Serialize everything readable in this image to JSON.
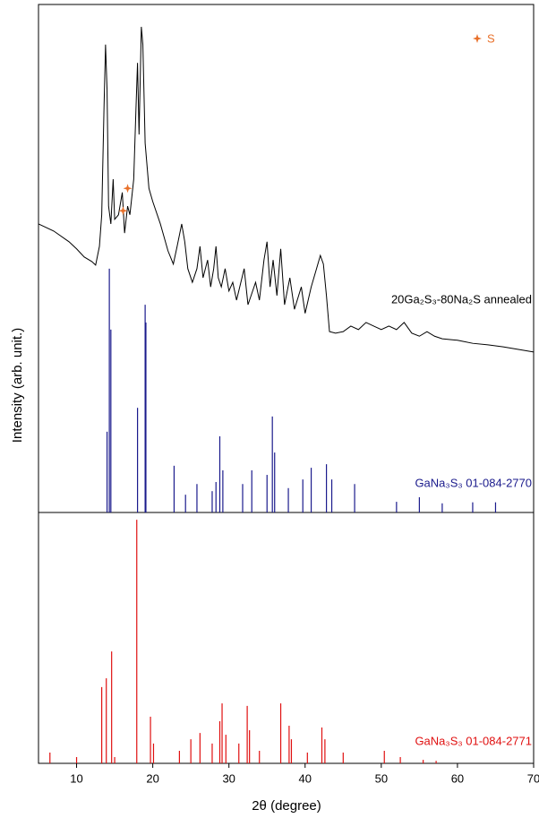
{
  "chart_data": [
    {
      "type": "combo",
      "ylabel": "Intensity (arb. unit.)",
      "xlim": [
        5,
        70
      ],
      "ylim": [
        0,
        100
      ],
      "legend": "upper right",
      "series": [
        {
          "name": "20Ga₂S₃-80Na₂S annealed",
          "type": "line",
          "color": "#000000",
          "x": [
            5,
            7,
            9,
            10,
            11,
            12,
            12.5,
            13,
            13.3,
            13.6,
            13.8,
            14,
            14.2,
            14.5,
            14.8,
            15,
            15.5,
            16,
            16.3,
            16.7,
            17,
            17.5,
            17.8,
            18,
            18.2,
            18.5,
            18.7,
            19,
            19.5,
            20,
            21,
            22,
            22.7,
            23.2,
            23.8,
            24.2,
            24.6,
            25.2,
            25.8,
            26.2,
            26.6,
            27.2,
            27.6,
            28,
            28.3,
            28.6,
            29,
            29.5,
            30,
            30.5,
            31,
            32,
            32.5,
            33.5,
            34,
            34.6,
            35,
            35.4,
            35.8,
            36.3,
            36.8,
            37.3,
            38,
            38.6,
            39.5,
            40,
            40.8,
            41.5,
            42,
            42.4,
            42.8,
            43.2,
            44,
            45,
            46,
            47,
            48,
            49,
            50,
            51,
            52,
            53,
            54,
            55,
            56,
            57,
            58,
            60,
            62,
            64,
            66,
            68,
            70
          ],
          "values": [
            56.8,
            55.4,
            53.3,
            51.9,
            50.3,
            49.4,
            48.7,
            52.4,
            58.6,
            79.7,
            92.1,
            83.2,
            60.3,
            56.8,
            65.6,
            57.7,
            58.6,
            63.0,
            55.0,
            60.3,
            58.6,
            65.6,
            79.7,
            88.5,
            74.4,
            95.6,
            92.1,
            72.7,
            63.8,
            61.2,
            56.8,
            51.5,
            48.9,
            52.4,
            56.8,
            53.3,
            48.0,
            45.3,
            48.0,
            52.4,
            46.2,
            49.7,
            44.4,
            48.0,
            52.4,
            46.2,
            44.4,
            48.0,
            43.6,
            45.3,
            41.8,
            48.0,
            40.9,
            45.3,
            41.8,
            49.7,
            53.3,
            44.4,
            49.7,
            42.7,
            51.9,
            40.9,
            46.2,
            40.0,
            44.4,
            39.2,
            44.4,
            48.0,
            50.6,
            48.9,
            42.7,
            35.6,
            35.3,
            35.6,
            36.7,
            36.0,
            37.4,
            36.7,
            36.0,
            36.7,
            36.0,
            37.4,
            35.3,
            34.7,
            35.6,
            34.7,
            34.2,
            33.9,
            33.3,
            33.0,
            32.6,
            32.1,
            31.6
          ]
        },
        {
          "name": "GaNa₃S₃ 01-084-2770",
          "type": "stick",
          "color": "#1a1a8c",
          "x": [
            14,
            14.3,
            14.5,
            18,
            19,
            19.1,
            22.8,
            24.3,
            25.8,
            27.8,
            28.3,
            28.8,
            29.2,
            31.8,
            33,
            35,
            35.7,
            36,
            37.8,
            39.7,
            40.8,
            42.8,
            43.5,
            46.5,
            52,
            55,
            58,
            62,
            65
          ],
          "values": [
            15.9,
            48,
            36,
            20.6,
            40.9,
            37.4,
            9.2,
            3.5,
            5.6,
            4.2,
            6,
            15,
            8.3,
            5.6,
            8.3,
            7.4,
            18.9,
            11.8,
            4.8,
            6.5,
            8.8,
            9.5,
            6.5,
            5.6,
            2.1,
            3,
            1.8,
            2,
            2
          ]
        },
        {
          "name": "S",
          "type": "scatter",
          "color": "#e8702a",
          "x": [
            16.1,
            16.7
          ],
          "values": [
            59.4,
            63.8
          ]
        }
      ]
    },
    {
      "type": "stick",
      "xlabel": "2θ (degree)",
      "xlim": [
        5,
        70
      ],
      "ylim": [
        0,
        100
      ],
      "xticks": [
        10,
        20,
        30,
        40,
        50,
        60,
        70
      ],
      "series": [
        {
          "name": "GaNa₃S₃ 01-084-2771",
          "type": "stick",
          "color": "#e01010",
          "x": [
            6.5,
            10,
            13.3,
            13.9,
            14.6,
            15,
            17.9,
            19.7,
            20.1,
            23.5,
            25,
            26.2,
            27.8,
            28.8,
            29.1,
            29.6,
            31.3,
            32.4,
            32.7,
            34,
            36.8,
            37.9,
            38.2,
            40.3,
            42.2,
            42.6,
            45,
            50.4,
            52.5,
            55.5,
            57.2
          ],
          "values": [
            4.3,
            2.5,
            30.4,
            33.9,
            44.6,
            2.5,
            97.1,
            18.6,
            7.9,
            5,
            9.6,
            12.1,
            7.9,
            16.8,
            23.9,
            11.4,
            7.9,
            22.9,
            13.2,
            5,
            23.9,
            15,
            9.6,
            4.3,
            14.3,
            9.6,
            4.3,
            5,
            2.5,
            1.4,
            1
          ]
        }
      ]
    }
  ]
}
